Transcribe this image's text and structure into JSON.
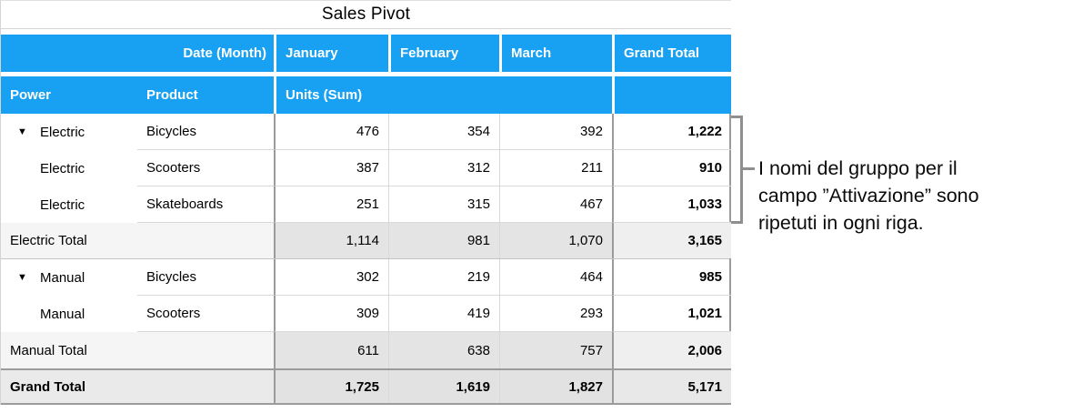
{
  "title": "Sales Pivot",
  "icons": {
    "disclosure": "▼"
  },
  "colors": {
    "header_blue": "#18a1f2",
    "divider_dark": "#9b9b9b",
    "divider_light": "#d9d9d9",
    "subtotal_bg": "#e4e4e4",
    "grand_total_bg": "#e2e2e2"
  },
  "header": {
    "date_field": "Date (Month)",
    "months": [
      "January",
      "February",
      "March"
    ],
    "grand_total": "Grand Total",
    "power": "Power",
    "product": "Product",
    "units": "Units (Sum)"
  },
  "rows": [
    {
      "power": "Electric",
      "product": "Bicycles",
      "jan": "476",
      "feb": "354",
      "mar": "392",
      "total": "1,222"
    },
    {
      "power": "Electric",
      "product": "Scooters",
      "jan": "387",
      "feb": "312",
      "mar": "211",
      "total": "910"
    },
    {
      "power": "Electric",
      "product": "Skateboards",
      "jan": "251",
      "feb": "315",
      "mar": "467",
      "total": "1,033"
    },
    {
      "label": "Electric Total",
      "jan": "1,114",
      "feb": "981",
      "mar": "1,070",
      "total": "3,165"
    },
    {
      "power": "Manual",
      "product": "Bicycles",
      "jan": "302",
      "feb": "219",
      "mar": "464",
      "total": "985"
    },
    {
      "power": "Manual",
      "product": "Scooters",
      "jan": "309",
      "feb": "419",
      "mar": "293",
      "total": "1,021"
    },
    {
      "label": "Manual Total",
      "jan": "611",
      "feb": "638",
      "mar": "757",
      "total": "2,006"
    },
    {
      "label": "Grand Total",
      "jan": "1,725",
      "feb": "1,619",
      "mar": "1,827",
      "total": "5,171"
    }
  ],
  "annotation": {
    "lines": [
      "I nomi del gruppo per il",
      "campo ”Attivazione” sono",
      "ripetuti in ogni riga."
    ]
  }
}
